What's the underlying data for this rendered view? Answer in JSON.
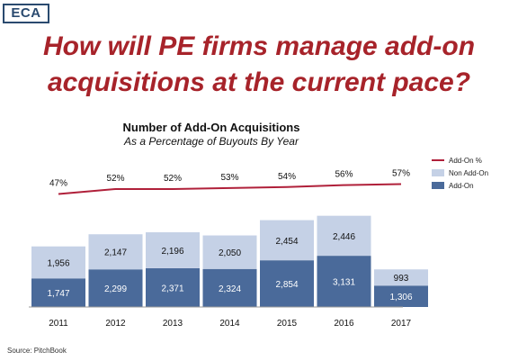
{
  "logo": {
    "text": "ECA"
  },
  "headline": {
    "line1": "How will PE firms manage add-on",
    "line2": "acquisitions at the current pace?"
  },
  "source": "Source: PitchBook",
  "colors": {
    "headline": "#a7232a",
    "add_on": "#4a6a9a",
    "non_add_on": "#c5d1e6",
    "add_on_pct_line": "#b0203a"
  },
  "chart_data": {
    "type": "bar",
    "stacked": true,
    "title": "Number of Add-On Acquisitions",
    "subtitle": "As a Percentage of Buyouts By Year",
    "categories": [
      "2011",
      "2012",
      "2013",
      "2014",
      "2015",
      "2016",
      "2017"
    ],
    "series": [
      {
        "name": "Add-On",
        "values": [
          1747,
          2299,
          2371,
          2324,
          2854,
          3131,
          1306
        ],
        "labels": [
          "1,747",
          "2,299",
          "2,371",
          "2,324",
          "2,854",
          "3,131",
          "1,306"
        ]
      },
      {
        "name": "Non Add-On",
        "values": [
          1956,
          2147,
          2196,
          2050,
          2454,
          2446,
          993
        ],
        "labels": [
          "1,956",
          "2,147",
          "2,196",
          "2,050",
          "2,454",
          "2,446",
          "993"
        ]
      }
    ],
    "line_series": {
      "name": "Add-On %",
      "values": [
        47,
        52,
        52,
        53,
        54,
        56,
        57
      ],
      "labels": [
        "47%",
        "52%",
        "52%",
        "53%",
        "54%",
        "56%",
        "57%"
      ]
    },
    "legend_entries": [
      "Add-On %",
      "Non Add-On",
      "Add-On"
    ],
    "legend_position": "right",
    "grid": false
  }
}
